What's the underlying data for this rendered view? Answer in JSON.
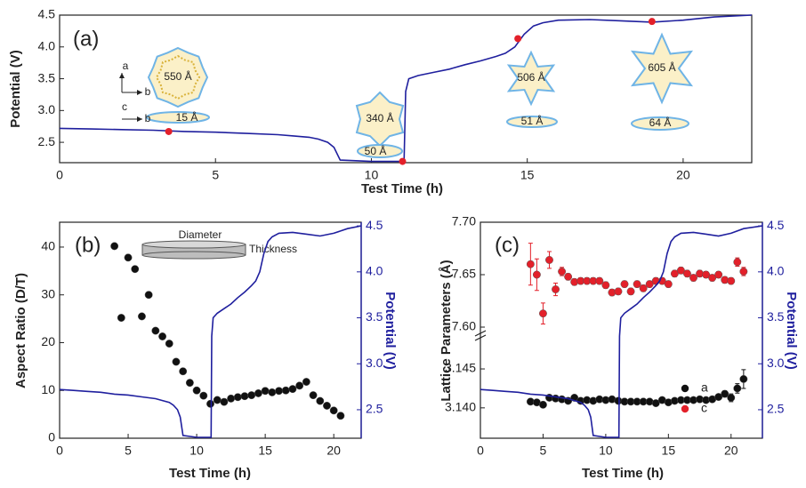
{
  "chart_data": [
    {
      "type": "line",
      "panel_label": "(a)",
      "xlabel": "Test Time (h)",
      "ylabel": "Potential (V)",
      "xlim": [
        0,
        22.2
      ],
      "xticks": [
        0,
        5,
        10,
        15,
        20
      ],
      "ylim": [
        2.18,
        4.5
      ],
      "yticks": [
        2.5,
        {
          "value": 3,
          "label": "3.0"
        },
        3.5,
        {
          "value": 4,
          "label": "4.0"
        },
        4.5
      ],
      "annotations": [
        "550 Å",
        "15 Å",
        "340 Å",
        "50 Å",
        "506 Å",
        "51 Å",
        "605 Å",
        "64 Å",
        "a",
        "b",
        "c",
        "b"
      ],
      "series": [
        {
          "type": "line",
          "color": "#1f1f9e",
          "x": [
            0,
            1,
            2,
            3,
            4,
            5,
            6,
            7,
            7.5,
            8,
            8.3,
            8.6,
            8.8,
            9.0,
            10.0,
            11.05,
            11.1,
            11.2,
            11.5,
            12,
            12.5,
            13,
            13.5,
            14,
            14.3,
            14.6,
            14.9,
            15.2,
            15.5,
            16,
            17,
            18,
            19,
            20,
            21,
            22.2
          ],
          "values": [
            2.72,
            2.71,
            2.7,
            2.69,
            2.67,
            2.66,
            2.64,
            2.62,
            2.6,
            2.58,
            2.55,
            2.5,
            2.42,
            2.22,
            2.2,
            2.2,
            3.3,
            3.5,
            3.55,
            3.6,
            3.65,
            3.72,
            3.78,
            3.85,
            3.9,
            4.0,
            4.2,
            4.33,
            4.38,
            4.42,
            4.43,
            4.41,
            4.39,
            4.42,
            4.47,
            4.5
          ]
        },
        {
          "type": "scatter",
          "color": "#e3202a",
          "x": [
            3.5,
            11,
            14.7,
            19
          ],
          "values": [
            2.67,
            2.2,
            4.13,
            4.4
          ]
        }
      ]
    },
    {
      "type": "scatter",
      "panel_label": "(b)",
      "xlabel": "Test Time (h)",
      "ylabel": "Aspect Ratio (D/T)",
      "y2label": "Potential (V)",
      "xlim": [
        0,
        22
      ],
      "xticks": [
        0,
        5,
        10,
        15,
        20
      ],
      "ylim": [
        0,
        45.2
      ],
      "yticks": [
        0,
        10,
        20,
        30,
        40
      ],
      "y2lim": [
        2.19,
        4.54
      ],
      "y2ticks": [
        2.5,
        {
          "value": 3,
          "label": "3.0"
        },
        3.5,
        {
          "value": 4,
          "label": "4.0"
        },
        4.5
      ],
      "annotations": [
        "Diameter",
        "Thickness"
      ],
      "series": [
        {
          "type": "scatter",
          "color": "#111111",
          "x": [
            4,
            4.5,
            5,
            5.5,
            6,
            6.5,
            7,
            7.5,
            8,
            8.5,
            9,
            9.5,
            10,
            10.5,
            11,
            11.5,
            12,
            12.5,
            13,
            13.5,
            14,
            14.5,
            15,
            15.5,
            16,
            16.5,
            17,
            17.5,
            18,
            18.5,
            19,
            19.5,
            20,
            20.5
          ],
          "values": [
            40.2,
            25.2,
            37.8,
            35.4,
            25.5,
            30,
            22.5,
            21.3,
            19.8,
            16,
            14,
            11.6,
            10,
            8.9,
            7.2,
            8,
            7.6,
            8.3,
            8.6,
            8.8,
            9,
            9.4,
            9.9,
            9.6,
            9.9,
            10,
            10.3,
            11,
            11.8,
            9,
            7.8,
            6.8,
            5.8,
            4.7
          ]
        },
        {
          "type": "line",
          "axis": "y2",
          "color": "#1f1f9e",
          "x": [
            0,
            1,
            2,
            3,
            4,
            5,
            6,
            7,
            7.5,
            8,
            8.3,
            8.6,
            8.8,
            9.0,
            10.0,
            11.05,
            11.1,
            11.2,
            11.5,
            12,
            12.5,
            13,
            13.5,
            14,
            14.3,
            14.6,
            14.9,
            15.2,
            15.5,
            16,
            17,
            18,
            19,
            20,
            21,
            22
          ],
          "values": [
            2.72,
            2.71,
            2.7,
            2.69,
            2.67,
            2.66,
            2.64,
            2.62,
            2.6,
            2.58,
            2.55,
            2.5,
            2.42,
            2.22,
            2.2,
            2.2,
            3.3,
            3.5,
            3.55,
            3.6,
            3.65,
            3.72,
            3.78,
            3.85,
            3.9,
            4.0,
            4.2,
            4.33,
            4.38,
            4.42,
            4.43,
            4.41,
            4.39,
            4.42,
            4.47,
            4.5
          ]
        }
      ]
    },
    {
      "type": "scatter",
      "panel_label": "(c)",
      "xlabel": "Test Time (h)",
      "ylabel": "Lattice Parameters (Å)",
      "y2label": "Potential (V)",
      "xlim": [
        0,
        22.5
      ],
      "xticks": [
        0,
        5,
        10,
        15,
        20
      ],
      "y_segments": [
        {
          "ylim": [
            3.1361,
            3.149
          ],
          "yticks": [
            {
              "value": 3.14,
              "label": "3.140"
            },
            3.145
          ]
        },
        {
          "ylim": [
            7.6,
            7.7
          ],
          "yticks": [
            {
              "value": 7.6,
              "label": "7.60"
            },
            7.65,
            {
              "value": 7.7,
              "label": "7.70"
            }
          ]
        }
      ],
      "y2lim": [
        2.19,
        4.54
      ],
      "y2ticks": [
        2.5,
        {
          "value": 3,
          "label": "3.0"
        },
        3.5,
        {
          "value": 4,
          "label": "4.0"
        },
        4.5
      ],
      "series": [
        {
          "type": "scatter",
          "name": "a",
          "color": "#111111",
          "segment": 0,
          "x": [
            4,
            4.5,
            5,
            5.5,
            6,
            6.5,
            7,
            7.5,
            8,
            8.5,
            9,
            9.5,
            10,
            10.5,
            11,
            11.5,
            12,
            12.5,
            13,
            13.5,
            14,
            14.5,
            15,
            15.5,
            16,
            16.5,
            17,
            17.5,
            18,
            18.5,
            19,
            19.5,
            20,
            20.5,
            21
          ],
          "values": [
            3.1408,
            3.1407,
            3.1404,
            3.1413,
            3.1412,
            3.1411,
            3.1409,
            3.1413,
            3.1409,
            3.141,
            3.1409,
            3.1411,
            3.141,
            3.1411,
            3.1409,
            3.1408,
            3.1408,
            3.1408,
            3.1408,
            3.1408,
            3.1406,
            3.141,
            3.1407,
            3.1409,
            3.141,
            3.141,
            3.141,
            3.1411,
            3.141,
            3.1411,
            3.1414,
            3.1418,
            3.1413,
            3.1425,
            3.1437
          ],
          "errors": [
            0.0003,
            0.0003,
            0.0002,
            0.0002,
            0.0002,
            0.0002,
            0.0002,
            0.0002,
            0.0002,
            0.0002,
            0.0002,
            0.0002,
            0.0002,
            0.0002,
            0.0002,
            0.0002,
            0.0002,
            0.0002,
            0.0002,
            0.0002,
            0.0002,
            0.0002,
            0.0002,
            0.0002,
            0.0002,
            0.0002,
            0.0002,
            0.0002,
            0.0002,
            0.0002,
            0.0003,
            0.0004,
            0.0005,
            0.0006,
            0.0012
          ]
        },
        {
          "type": "scatter",
          "name": "c",
          "color": "#e3202a",
          "segment": 1,
          "x": [
            4,
            4.5,
            5,
            5.5,
            6,
            6.5,
            7,
            7.5,
            8,
            8.5,
            9,
            9.5,
            10,
            10.5,
            11,
            11.5,
            12,
            12.5,
            13,
            13.5,
            14,
            14.5,
            15,
            15.5,
            16,
            16.5,
            17,
            17.5,
            18,
            18.5,
            19,
            19.5,
            20,
            20.5,
            21
          ],
          "values": [
            7.66,
            7.65,
            7.613,
            7.664,
            7.636,
            7.653,
            7.648,
            7.643,
            7.644,
            7.644,
            7.644,
            7.644,
            7.64,
            7.633,
            7.634,
            7.641,
            7.634,
            7.641,
            7.637,
            7.641,
            7.644,
            7.644,
            7.641,
            7.651,
            7.654,
            7.651,
            7.647,
            7.651,
            7.65,
            7.647,
            7.65,
            7.645,
            7.644,
            7.662,
            7.653
          ],
          "errors": [
            0.02,
            0.015,
            0.01,
            0.008,
            0.006,
            0.004,
            0.003,
            0.003,
            0.003,
            0.003,
            0.003,
            0.003,
            0.003,
            0.003,
            0.003,
            0.003,
            0.003,
            0.003,
            0.003,
            0.003,
            0.003,
            0.003,
            0.003,
            0.003,
            0.003,
            0.003,
            0.003,
            0.003,
            0.003,
            0.003,
            0.003,
            0.003,
            0.003,
            0.004,
            0.004
          ]
        },
        {
          "type": "line",
          "axis": "y2",
          "color": "#1f1f9e",
          "x": [
            0,
            1,
            2,
            3,
            4,
            5,
            6,
            7,
            7.5,
            8,
            8.3,
            8.6,
            8.8,
            9.0,
            10.0,
            11.05,
            11.1,
            11.2,
            11.5,
            12,
            12.5,
            13,
            13.5,
            14,
            14.3,
            14.6,
            14.9,
            15.2,
            15.5,
            16,
            17,
            18,
            19,
            20,
            21,
            22.5
          ],
          "values": [
            2.72,
            2.71,
            2.7,
            2.69,
            2.67,
            2.66,
            2.64,
            2.62,
            2.6,
            2.58,
            2.55,
            2.5,
            2.42,
            2.22,
            2.2,
            2.2,
            3.3,
            3.5,
            3.55,
            3.6,
            3.65,
            3.72,
            3.78,
            3.85,
            3.9,
            4.0,
            4.2,
            4.33,
            4.38,
            4.42,
            4.43,
            4.41,
            4.39,
            4.42,
            4.47,
            4.5
          ]
        }
      ]
    }
  ]
}
